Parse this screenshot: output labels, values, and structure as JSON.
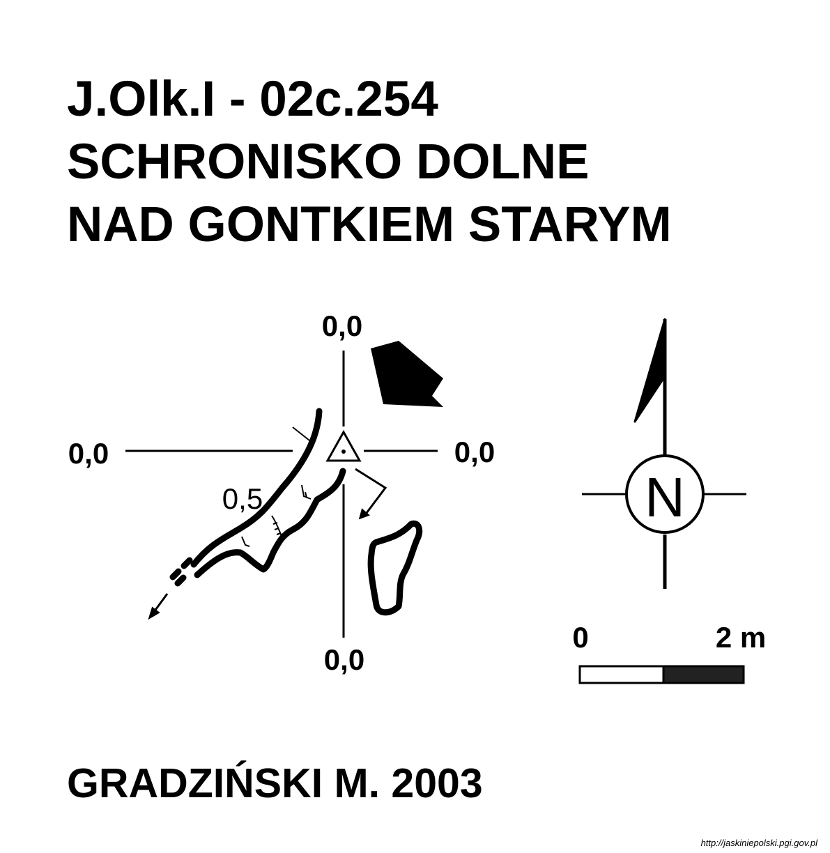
{
  "title": {
    "line1": "J.Olk.I - 02c.254",
    "line2": "SCHRONISKO DOLNE",
    "line3": "NAD GONTKIEM STARYM"
  },
  "survey": {
    "levels": {
      "top": "0,0",
      "left": "0,0",
      "right": "0,0",
      "bottom": "0,0",
      "passage_depth": "0,5"
    },
    "datum_symbol": "triangle-datum-icon",
    "entrance_marker": "entrance-arrow-icon"
  },
  "north_arrow": {
    "letter": "N",
    "icon": "north-arrow-icon"
  },
  "scale_bar": {
    "start_label": "0",
    "end_label": "2 m"
  },
  "author": "GRADZIŃSKI M. 2003",
  "source": "http://jaskiniepolski.pgi.gov.pl",
  "colors": {
    "ink": "#000000",
    "paper": "#ffffff",
    "scale_dark": "#222222"
  }
}
